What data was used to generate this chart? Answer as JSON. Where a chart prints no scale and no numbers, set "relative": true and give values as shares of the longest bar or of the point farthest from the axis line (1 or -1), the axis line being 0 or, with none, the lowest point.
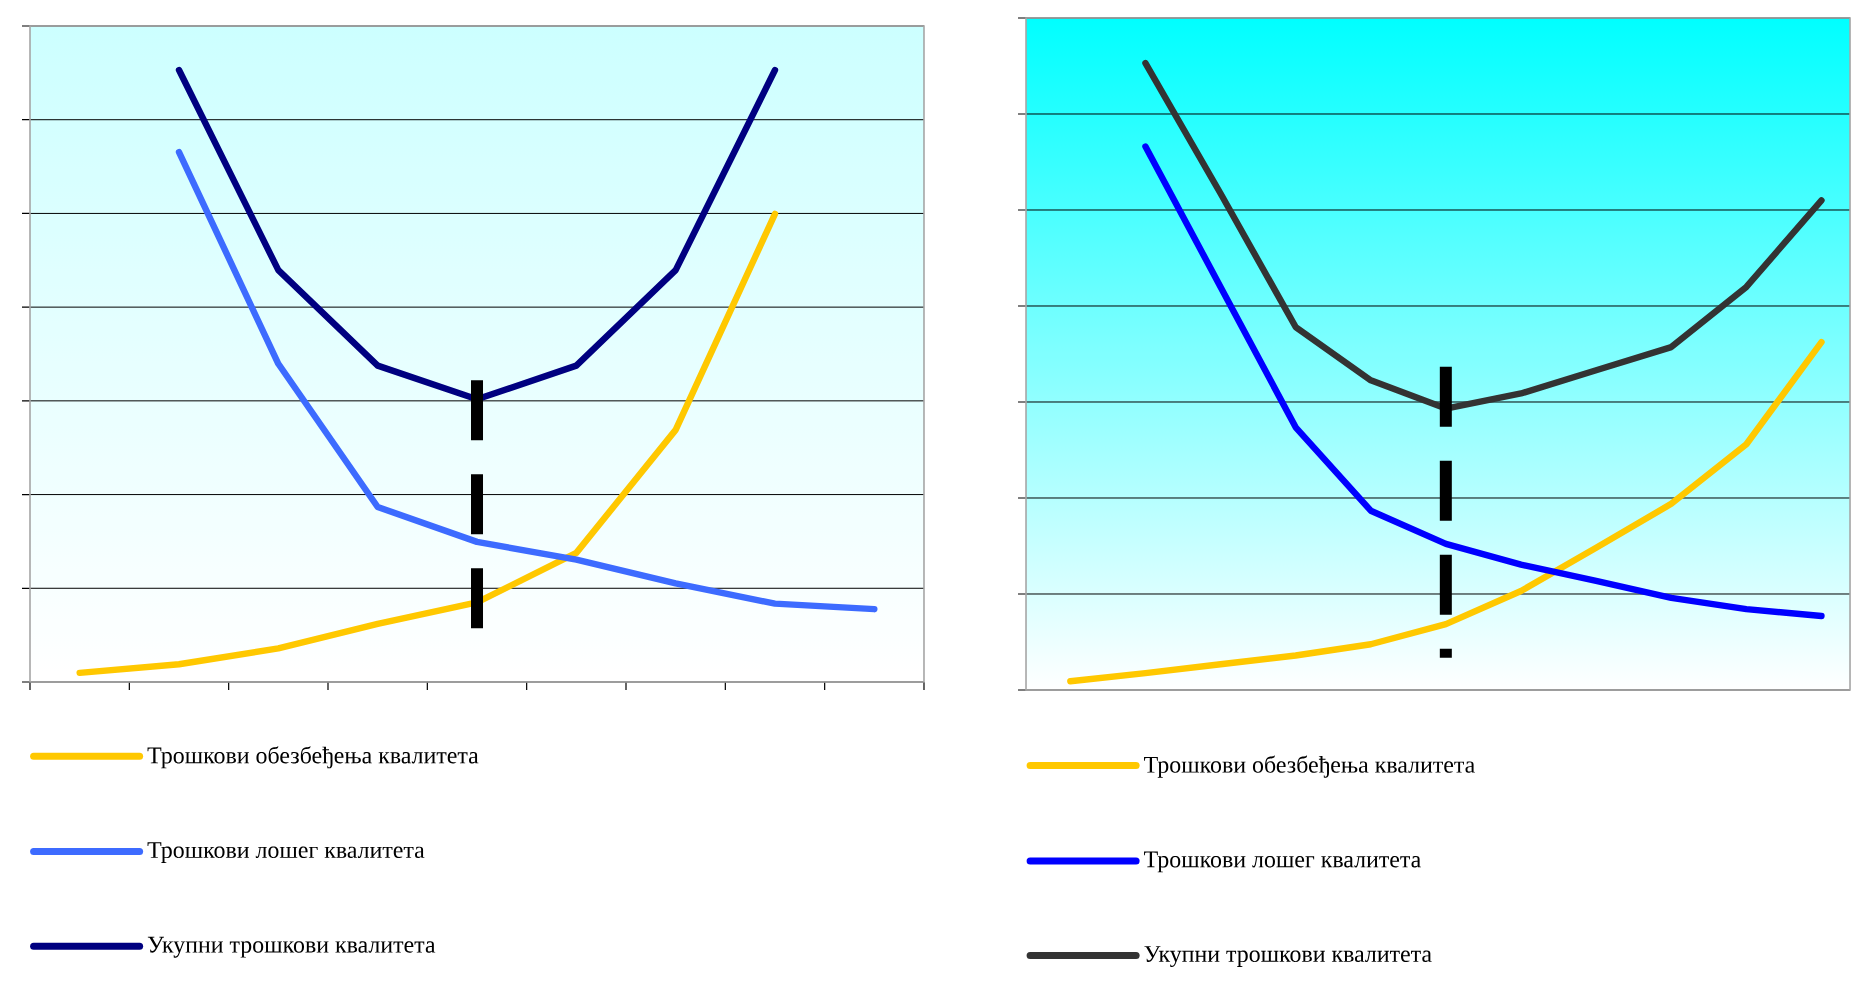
{
  "chart_data": [
    {
      "type": "line",
      "relative": true,
      "categories": [
        null,
        null,
        null,
        null,
        null,
        null,
        null,
        null,
        null
      ],
      "grid": "y",
      "legend": "bottom",
      "series": [
        {
          "name": "Трошкови обезбеђења квалитета",
          "color": "#ffc800",
          "values": [
            0.015,
            0.029,
            0.055,
            0.095,
            0.13,
            0.211,
            0.412,
            0.765,
            null
          ]
        },
        {
          "name": "Трошкови лошег квалитета",
          "color": "#3d6bff",
          "values": [
            null,
            0.866,
            0.52,
            0.286,
            0.229,
            0.2,
            0.161,
            0.128,
            0.119
          ]
        },
        {
          "name": "Укупни трошкови квалитета",
          "color": "#000080",
          "values": [
            null,
            1.0,
            0.673,
            0.517,
            0.462,
            0.517,
            0.673,
            1.0,
            null
          ]
        }
      ]
    },
    {
      "type": "line",
      "relative": true,
      "categories": [
        null,
        null,
        null,
        null,
        null,
        null,
        null,
        null,
        null,
        null,
        null
      ],
      "grid": "y",
      "legend": "bottom",
      "series": [
        {
          "name": "Трошкови обезбеђења квалитета",
          "color": "#ffc800",
          "values": [
            0.014,
            0.027,
            0.041,
            0.055,
            0.073,
            0.105,
            0.158,
            0.227,
            0.297,
            0.392,
            0.555
          ]
        },
        {
          "name": "Трошкови лошег квалитета",
          "color": "#0000ff",
          "values": [
            null,
            0.867,
            0.643,
            0.419,
            0.286,
            0.233,
            0.2,
            0.174,
            0.147,
            0.129,
            0.118
          ]
        },
        {
          "name": "Укупни трошкови квалитета",
          "color": "#333333",
          "values": [
            null,
            1.0,
            0.792,
            0.579,
            0.494,
            0.449,
            0.473,
            0.51,
            0.547,
            0.643,
            0.781
          ]
        }
      ]
    }
  ]
}
